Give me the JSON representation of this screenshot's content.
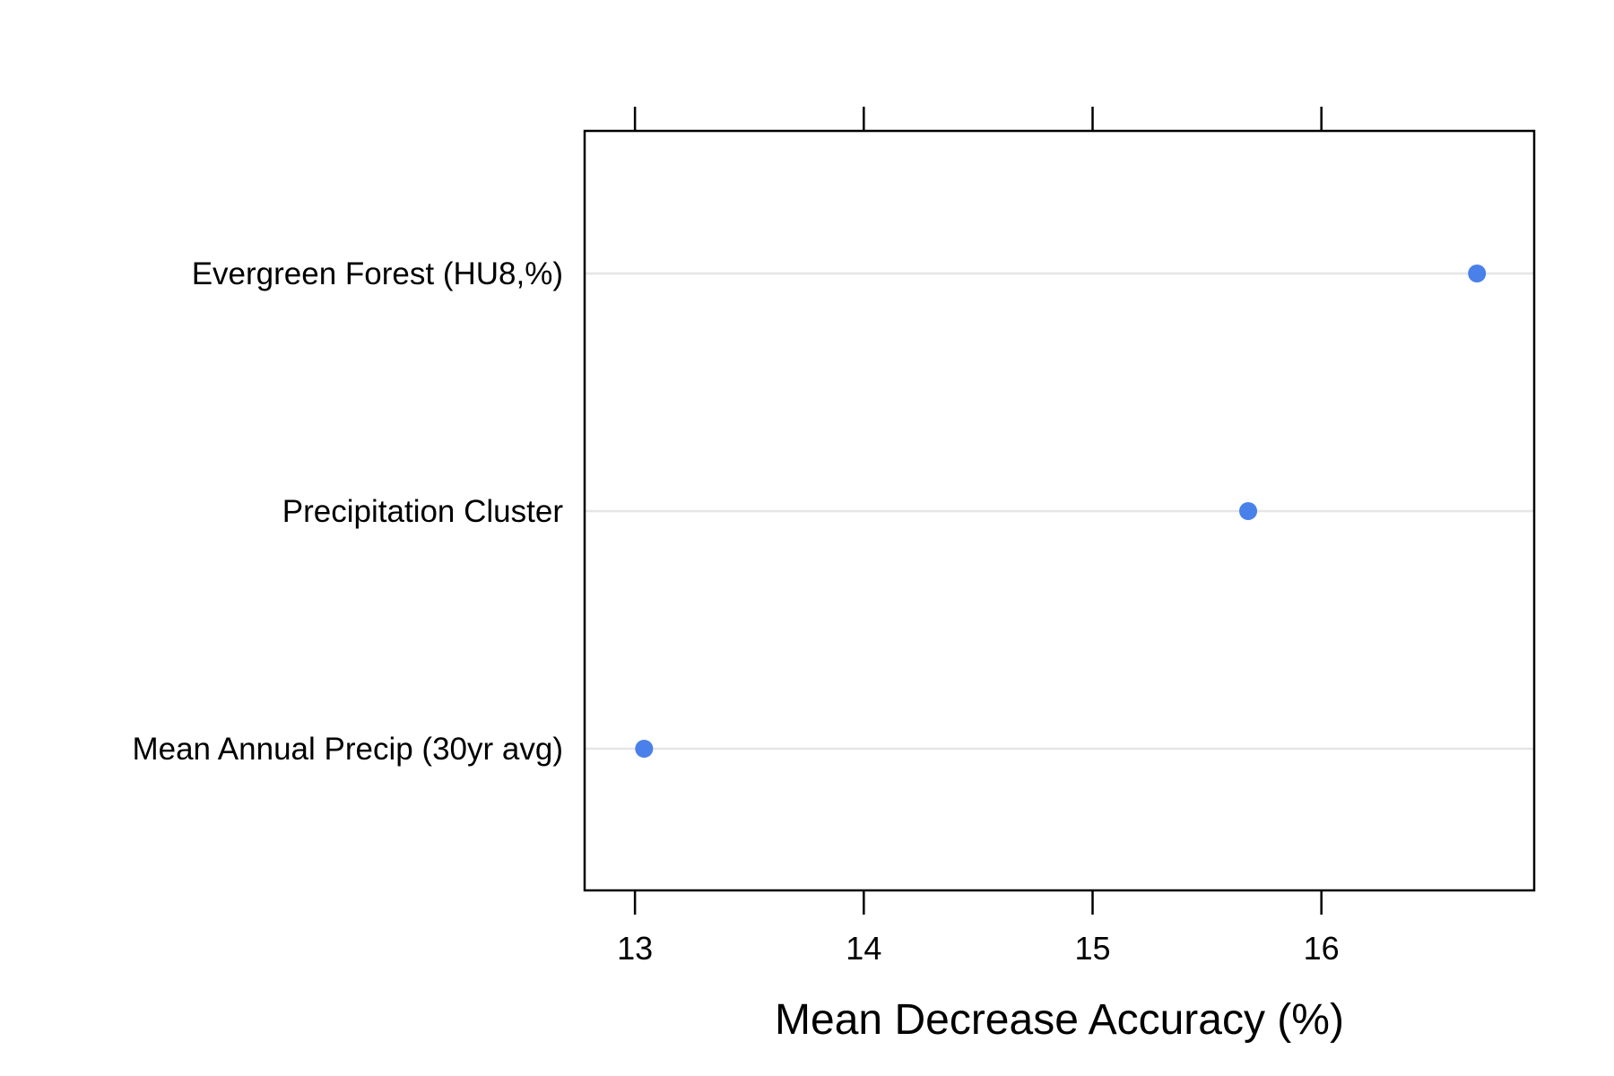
{
  "chart_data": {
    "type": "dot",
    "xlabel": "Mean Decrease Accuracy (%)",
    "ylabel": "",
    "xlim": [
      12.78,
      16.93
    ],
    "xticks": [
      13,
      14,
      15,
      16
    ],
    "categories": [
      "Evergreen Forest (HU8,%)",
      "Precipitation Cluster",
      "Mean Annual Precip (30yr avg)"
    ],
    "values": [
      16.68,
      15.68,
      13.04
    ],
    "grid": "horizontal reference lines",
    "point_color": "#4a80ea",
    "gridline_color": "#e6e6e6"
  }
}
